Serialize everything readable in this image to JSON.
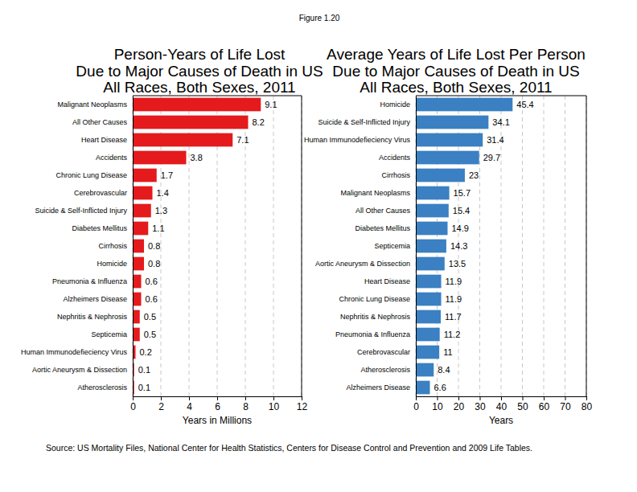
{
  "figure_label": "Figure 1.20",
  "source": "Source: US Mortality Files, National Center for Health Statistics, Centers for Disease Control and Prevention and 2009 Life Tables.",
  "chart_data": [
    {
      "type": "bar",
      "orientation": "horizontal",
      "title": "Person-Years of Life Lost\nDue to Major Causes of Death in US\nAll Races, Both Sexes, 2011",
      "x_label": "Years in Millions",
      "categories": [
        "Malignant Neoplasms",
        "All Other Causes",
        "Heart Disease",
        "Accidents",
        "Chronic Lung Disease",
        "Cerebrovascular",
        "Suicide & Self-Inflicted Injury",
        "Diabetes Mellitus",
        "Cirrhosis",
        "Homicide",
        "Pneumonia & Influenza",
        "Alzheimers Disease",
        "Nephritis & Nephrosis",
        "Septicemia",
        "Human Immunodefieciency Virus",
        "Aortic Aneurysm & Dissection",
        "Atherosclerosis"
      ],
      "values": [
        9.1,
        8.2,
        7.1,
        3.8,
        1.7,
        1.4,
        1.3,
        1.1,
        0.8,
        0.8,
        0.6,
        0.6,
        0.5,
        0.5,
        0.2,
        0.1,
        0.1
      ],
      "color": "#e41a1c",
      "xlim": [
        0,
        12
      ],
      "xticks": [
        0,
        2,
        4,
        6,
        8,
        10,
        12
      ],
      "grid": true,
      "data_labels": true
    },
    {
      "type": "bar",
      "orientation": "horizontal",
      "title": "Average Years of Life Lost Per Person\nDue to Major Causes of Death in US\nAll Races, Both Sexes, 2011",
      "x_label": "Years",
      "categories": [
        "Homicide",
        "Suicide & Self-Inflicted Injury",
        "Human Immunodefieciency Virus",
        "Accidents",
        "Cirrhosis",
        "Malignant Neoplasms",
        "All Other Causes",
        "Diabetes Mellitus",
        "Septicemia",
        "Aortic Aneurysm & Dissection",
        "Heart Disease",
        "Chronic Lung Disease",
        "Nephritis & Nephrosis",
        "Pneumonia & Influenza",
        "Cerebrovascular",
        "Atherosclerosis",
        "Alzheimers Disease"
      ],
      "values": [
        45.4,
        34.1,
        31.4,
        29.7,
        23,
        15.7,
        15.4,
        14.9,
        14.3,
        13.5,
        11.9,
        11.9,
        11.7,
        11.2,
        11,
        8.4,
        6.6
      ],
      "color": "#3a80c2",
      "xlim": [
        0,
        80
      ],
      "xticks": [
        0,
        10,
        20,
        30,
        40,
        50,
        60,
        70,
        80
      ],
      "grid": true,
      "data_labels": true
    }
  ]
}
